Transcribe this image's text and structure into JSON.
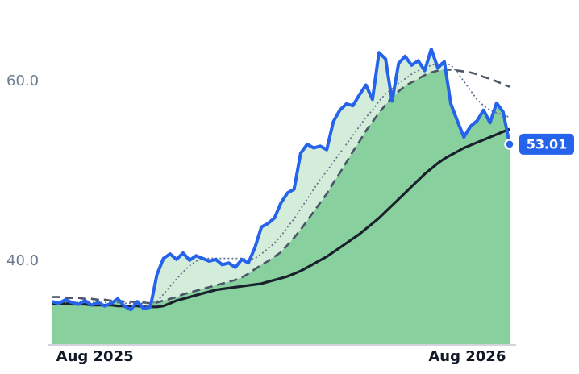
{
  "chart_data": {
    "type": "line",
    "xlim": [
      0,
      70
    ],
    "ylim": [
      30.67,
      69.06
    ],
    "xticks": [
      {
        "value": 6.5,
        "label": "Aug 2025"
      },
      {
        "value": 63.5,
        "label": "Aug 2026"
      }
    ],
    "yticks": [
      {
        "value": 40,
        "label": "40.0"
      },
      {
        "value": 60,
        "label": "60.0"
      }
    ],
    "x": [
      0,
      1,
      2,
      3,
      4,
      5,
      6,
      7,
      8,
      9,
      10,
      11,
      12,
      13,
      14,
      15,
      16,
      17,
      18,
      19,
      20,
      21,
      22,
      23,
      24,
      25,
      26,
      27,
      28,
      29,
      30,
      31,
      32,
      33,
      34,
      35,
      36,
      37,
      38,
      39,
      40,
      41,
      42,
      43,
      44,
      45,
      46,
      47,
      48,
      49,
      50,
      51,
      52,
      53,
      54,
      55,
      56,
      57,
      58,
      59,
      60,
      61,
      62,
      63,
      64,
      65,
      66,
      67,
      68,
      69,
      70
    ],
    "series": [
      {
        "color": "#2563eb",
        "style": "solid",
        "values": [
          35.5,
          35.3,
          35.7,
          35.4,
          35.2,
          35.6,
          35.1,
          35.4,
          35.0,
          35.3,
          35.8,
          35.0,
          34.6,
          35.5,
          34.7,
          34.9,
          38.5,
          40.3,
          40.8,
          40.2,
          40.9,
          40.1,
          40.6,
          40.3,
          40.0,
          40.2,
          39.6,
          39.8,
          39.3,
          40.2,
          39.8,
          41.5,
          43.8,
          44.2,
          44.8,
          46.5,
          47.6,
          48.0,
          52.0,
          53.0,
          52.6,
          52.8,
          52.4,
          55.5,
          56.8,
          57.5,
          57.3,
          58.5,
          59.6,
          58.0,
          63.2,
          62.5,
          57.8,
          62.0,
          62.8,
          61.8,
          62.3,
          61.2,
          63.6,
          61.5,
          62.2,
          57.5,
          55.6,
          53.8,
          55.0,
          55.6,
          56.8,
          55.4,
          57.6,
          56.6,
          53.01
        ]
      },
      {
        "color": "#64748b",
        "style": "dotted",
        "values": [
          35.4,
          35.4,
          35.4,
          35.4,
          35.4,
          35.4,
          35.4,
          35.4,
          35.4,
          35.4,
          35.4,
          35.3,
          35.3,
          35.3,
          35.3,
          35.3,
          35.5,
          36.3,
          37.2,
          38.0,
          38.8,
          39.5,
          40.0,
          40.3,
          40.3,
          40.3,
          40.3,
          40.3,
          40.3,
          40.3,
          40.2,
          40.3,
          40.8,
          41.4,
          42.0,
          42.8,
          43.8,
          44.7,
          45.8,
          46.9,
          48.0,
          49.1,
          50.0,
          51.0,
          52.0,
          53.0,
          54.0,
          55.0,
          56.0,
          56.8,
          57.8,
          58.6,
          59.2,
          59.8,
          60.3,
          60.8,
          61.2,
          61.5,
          61.8,
          62.0,
          62.1,
          61.8,
          61.0,
          60.0,
          59.0,
          58.0,
          57.3,
          56.8,
          56.5,
          56.3,
          56.0
        ]
      },
      {
        "color": "#4a5568",
        "style": "dashed",
        "values": [
          36.0,
          36.0,
          35.9,
          35.9,
          35.9,
          35.8,
          35.8,
          35.7,
          35.7,
          35.6,
          35.6,
          35.5,
          35.5,
          35.4,
          35.4,
          35.3,
          35.4,
          35.6,
          35.8,
          36.0,
          36.3,
          36.5,
          36.7,
          36.9,
          37.1,
          37.3,
          37.5,
          37.7,
          37.9,
          38.2,
          38.6,
          39.1,
          39.6,
          40.0,
          40.5,
          41.0,
          41.8,
          42.6,
          43.5,
          44.5,
          45.5,
          46.5,
          47.5,
          48.7,
          49.8,
          51.0,
          52.2,
          53.3,
          54.5,
          55.5,
          56.5,
          57.4,
          58.2,
          58.9,
          59.5,
          59.9,
          60.3,
          60.7,
          61.0,
          61.2,
          61.3,
          61.3,
          61.2,
          61.1,
          61.0,
          60.8,
          60.5,
          60.3,
          60.0,
          59.7,
          59.4
        ]
      },
      {
        "color": "#1a202c",
        "style": "solid-thick",
        "values": [
          35.3,
          35.3,
          35.3,
          35.2,
          35.2,
          35.2,
          35.1,
          35.1,
          35.1,
          35.1,
          35.0,
          35.0,
          35.0,
          35.0,
          34.9,
          34.9,
          34.9,
          35.0,
          35.3,
          35.6,
          35.8,
          36.0,
          36.2,
          36.4,
          36.6,
          36.8,
          36.9,
          37.0,
          37.1,
          37.2,
          37.3,
          37.4,
          37.5,
          37.7,
          37.9,
          38.1,
          38.3,
          38.6,
          38.9,
          39.3,
          39.7,
          40.1,
          40.5,
          41.0,
          41.5,
          42.0,
          42.5,
          43.0,
          43.6,
          44.2,
          44.8,
          45.5,
          46.2,
          46.9,
          47.6,
          48.3,
          49.0,
          49.7,
          50.3,
          50.9,
          51.4,
          51.8,
          52.2,
          52.6,
          52.9,
          53.2,
          53.5,
          53.8,
          54.1,
          54.4,
          54.7
        ]
      }
    ]
  }
}
